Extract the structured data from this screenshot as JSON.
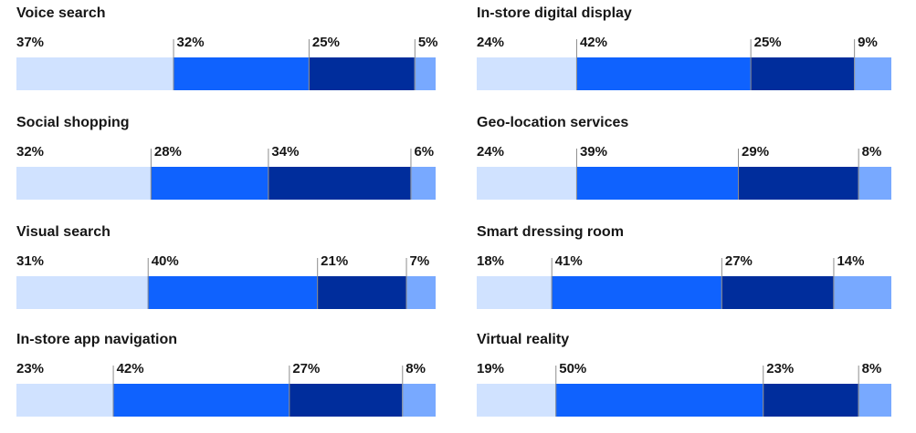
{
  "chart_data": {
    "type": "bar",
    "orientation": "horizontal-stacked-100",
    "colors": [
      "#d0e2ff",
      "#0f62fe",
      "#002d9c",
      "#78a9ff"
    ],
    "panels": [
      {
        "title": "Voice search",
        "values": [
          37,
          32,
          25,
          5
        ]
      },
      {
        "title": "Social shopping",
        "values": [
          32,
          28,
          34,
          6
        ]
      },
      {
        "title": "Visual search",
        "values": [
          31,
          40,
          21,
          7
        ]
      },
      {
        "title": "In-store app navigation",
        "values": [
          23,
          42,
          27,
          8
        ]
      },
      {
        "title": "In-store digital display",
        "values": [
          24,
          42,
          25,
          9
        ]
      },
      {
        "title": "Geo-location services",
        "values": [
          24,
          39,
          29,
          8
        ]
      },
      {
        "title": "Smart dressing room",
        "values": [
          18,
          41,
          27,
          14
        ]
      },
      {
        "title": "Virtual reality",
        "values": [
          19,
          50,
          23,
          8
        ]
      }
    ]
  }
}
